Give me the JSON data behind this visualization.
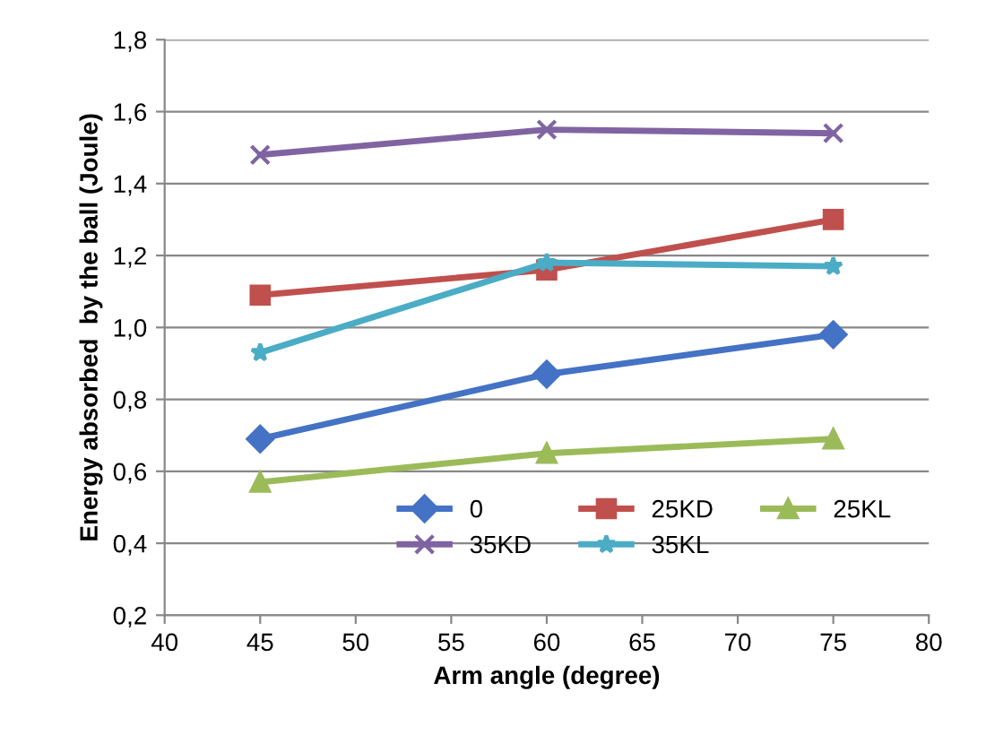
{
  "chart_data": {
    "type": "line",
    "xlabel": "Arm angle (degree)",
    "ylabel": "Energy absorbed  by the ball (Joule)",
    "x": [
      45,
      60,
      75
    ],
    "series": [
      {
        "name": "0",
        "color": "#4472c4",
        "marker": "diamond",
        "values": [
          0.69,
          0.87,
          0.98
        ]
      },
      {
        "name": "25KD",
        "color": "#c0504d",
        "marker": "square",
        "values": [
          1.09,
          1.16,
          1.3
        ]
      },
      {
        "name": "25KL",
        "color": "#9bbb59",
        "marker": "triangle",
        "values": [
          0.57,
          0.65,
          0.69
        ]
      },
      {
        "name": "35KD",
        "color": "#8064a2",
        "marker": "cross",
        "values": [
          1.48,
          1.55,
          1.54
        ]
      },
      {
        "name": "35KL",
        "color": "#4bacc6",
        "marker": "star",
        "values": [
          0.93,
          1.18,
          1.17
        ]
      }
    ],
    "xlim": [
      40,
      80
    ],
    "xticks": [
      40,
      45,
      50,
      55,
      60,
      65,
      70,
      75,
      80
    ],
    "ylim": [
      0.2,
      1.8
    ],
    "yticks": [
      {
        "value": 0.2,
        "label": "0,2"
      },
      {
        "value": 0.4,
        "label": "0,4"
      },
      {
        "value": 0.6,
        "label": "0,6"
      },
      {
        "value": 0.8,
        "label": "0,8"
      },
      {
        "value": 1.0,
        "label": "1,0"
      },
      {
        "value": 1.2,
        "label": "1,2"
      },
      {
        "value": 1.4,
        "label": "1,4"
      },
      {
        "value": 1.6,
        "label": "1,6"
      },
      {
        "value": 1.8,
        "label": "1,8"
      }
    ],
    "grid": "y",
    "legend": "bottom right",
    "line_style": "solid"
  }
}
